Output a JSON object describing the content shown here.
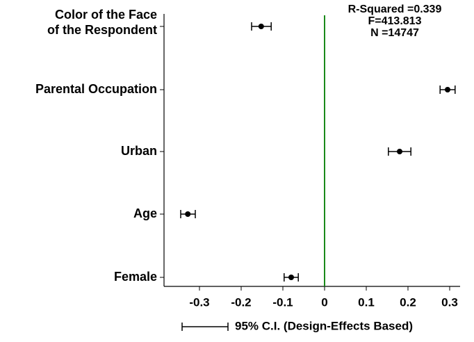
{
  "chart_data": {
    "type": "coefplot",
    "categories": [
      [
        "Color of the Face",
        "of the Respondent"
      ],
      "Parental Occupation",
      "Urban",
      "Age",
      "Female"
    ],
    "series": [
      {
        "name": "95% C.I. (Design-Effects Based)",
        "color": "#000000",
        "values": [
          -0.152,
          0.295,
          0.18,
          -0.328,
          -0.08
        ],
        "ci_low": [
          -0.175,
          0.277,
          0.153,
          -0.345,
          -0.097
        ],
        "ci_high": [
          -0.128,
          0.313,
          0.207,
          -0.31,
          -0.063
        ]
      }
    ],
    "xlim": [
      -0.385,
      0.32
    ],
    "xticks": [
      -0.3,
      -0.2,
      -0.1,
      0.0,
      0.1,
      0.2,
      0.3
    ],
    "refline": 0,
    "refline_color": "#1a8a1a",
    "annotations": [
      "R-Squared =0.339",
      "F=413.813",
      "N =14747"
    ]
  }
}
